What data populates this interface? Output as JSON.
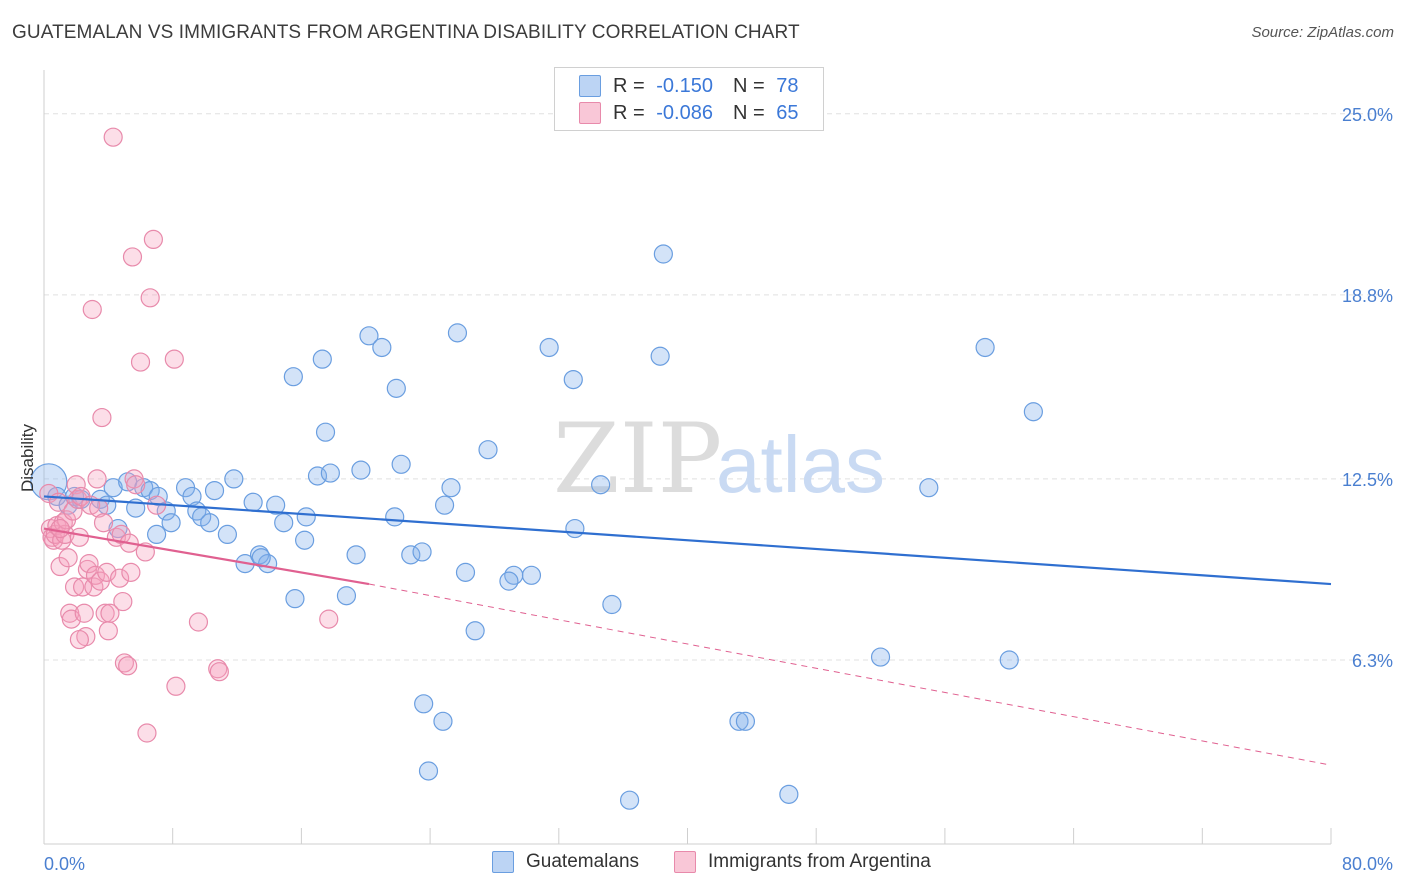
{
  "title": "GUATEMALAN VS IMMIGRANTS FROM ARGENTINA DISABILITY CORRELATION CHART",
  "source": "Source: ZipAtlas.com",
  "watermark": {
    "zip": "ZIP",
    "atlas": "atlas"
  },
  "legend_stats": [
    {
      "r_label": "R =",
      "r_value": "-0.150",
      "n_label": "N =",
      "n_value": "78",
      "color": "#a8c8f0",
      "border": "#6a9ee0"
    },
    {
      "r_label": "R =",
      "r_value": "-0.086",
      "n_label": "N =",
      "n_value": "65",
      "color": "#f7b6cb",
      "border": "#e88aab"
    }
  ],
  "colors": {
    "blue_fill": "rgba(130,175,235,0.35)",
    "blue_stroke": "#6a9ee0",
    "blue_line": "#2f6fd0",
    "pink_fill": "rgba(245,160,190,0.35)",
    "pink_stroke": "#e88aab",
    "pink_line": "#e06090",
    "grid": "#e0e0e0",
    "tick": "#4a7fd0"
  },
  "chart_data": {
    "type": "scatter",
    "title": "GUATEMALAN VS IMMIGRANTS FROM ARGENTINA DISABILITY CORRELATION CHART",
    "xlabel": "",
    "ylabel": "Disability",
    "xlim": [
      0,
      80
    ],
    "ylim": [
      0,
      26.5
    ],
    "x_tick_labels": [
      {
        "value": 0,
        "label": "0.0%"
      },
      {
        "value": 80,
        "label": "80.0%"
      }
    ],
    "y_tick_labels": [
      {
        "value": 6.3,
        "label": "6.3%"
      },
      {
        "value": 12.5,
        "label": "12.5%"
      },
      {
        "value": 18.8,
        "label": "18.8%"
      },
      {
        "value": 25.0,
        "label": "25.0%"
      }
    ],
    "grid": true,
    "series": [
      {
        "name": "Guatemalans",
        "points": [
          [
            0.3,
            12.4
          ],
          [
            0.8,
            11.9
          ],
          [
            1.5,
            11.6
          ],
          [
            1.9,
            11.9
          ],
          [
            2.3,
            11.8
          ],
          [
            3.5,
            11.8
          ],
          [
            3.9,
            11.6
          ],
          [
            4.3,
            12.2
          ],
          [
            4.6,
            10.8
          ],
          [
            5.2,
            12.4
          ],
          [
            5.7,
            11.5
          ],
          [
            6.2,
            12.2
          ],
          [
            6.6,
            12.1
          ],
          [
            7.1,
            11.9
          ],
          [
            7.6,
            11.4
          ],
          [
            7.9,
            11.0
          ],
          [
            8.8,
            12.2
          ],
          [
            9.2,
            11.9
          ],
          [
            9.5,
            11.4
          ],
          [
            9.8,
            11.2
          ],
          [
            10.3,
            11.0
          ],
          [
            10.6,
            12.1
          ],
          [
            11.4,
            10.6
          ],
          [
            11.8,
            12.5
          ],
          [
            12.5,
            9.6
          ],
          [
            13.0,
            11.7
          ],
          [
            13.4,
            9.9
          ],
          [
            13.9,
            9.6
          ],
          [
            14.4,
            11.6
          ],
          [
            14.9,
            11.0
          ],
          [
            15.6,
            8.4
          ],
          [
            15.5,
            16.0
          ],
          [
            17.0,
            12.6
          ],
          [
            16.3,
            11.2
          ],
          [
            16.2,
            10.4
          ],
          [
            17.3,
            16.6
          ],
          [
            17.5,
            14.1
          ],
          [
            17.8,
            12.7
          ],
          [
            18.8,
            8.5
          ],
          [
            19.4,
            9.9
          ],
          [
            19.7,
            12.8
          ],
          [
            20.2,
            17.4
          ],
          [
            21.0,
            17.0
          ],
          [
            21.9,
            15.6
          ],
          [
            21.8,
            11.2
          ],
          [
            22.2,
            13.0
          ],
          [
            22.8,
            9.9
          ],
          [
            23.5,
            10.0
          ],
          [
            23.6,
            4.8
          ],
          [
            23.9,
            2.5
          ],
          [
            24.8,
            4.2
          ],
          [
            24.9,
            11.6
          ],
          [
            25.3,
            12.2
          ],
          [
            25.7,
            17.5
          ],
          [
            26.2,
            9.3
          ],
          [
            26.8,
            7.3
          ],
          [
            27.6,
            13.5
          ],
          [
            29.2,
            9.2
          ],
          [
            30.3,
            9.2
          ],
          [
            31.4,
            17.0
          ],
          [
            32.9,
            15.9
          ],
          [
            33.0,
            10.8
          ],
          [
            34.6,
            12.3
          ],
          [
            35.3,
            8.2
          ],
          [
            36.4,
            1.5
          ],
          [
            38.3,
            16.7
          ],
          [
            38.5,
            20.2
          ],
          [
            43.2,
            4.2
          ],
          [
            43.6,
            4.2
          ],
          [
            46.3,
            1.7
          ],
          [
            52.0,
            6.4
          ],
          [
            55.0,
            12.2
          ],
          [
            58.5,
            17.0
          ],
          [
            60.0,
            6.3
          ],
          [
            61.5,
            14.8
          ],
          [
            13.5,
            9.8
          ],
          [
            7.0,
            10.6
          ],
          [
            28.9,
            9.0
          ]
        ]
      },
      {
        "name": "Immigrants from Argentina",
        "points": [
          [
            0.3,
            12.0
          ],
          [
            0.4,
            10.8
          ],
          [
            0.5,
            10.5
          ],
          [
            0.6,
            10.4
          ],
          [
            0.7,
            10.6
          ],
          [
            0.8,
            10.9
          ],
          [
            0.9,
            11.7
          ],
          [
            1.0,
            9.5
          ],
          [
            1.1,
            10.4
          ],
          [
            1.2,
            11.0
          ],
          [
            1.3,
            10.6
          ],
          [
            1.4,
            11.1
          ],
          [
            1.5,
            9.8
          ],
          [
            1.6,
            7.9
          ],
          [
            1.7,
            7.7
          ],
          [
            1.8,
            11.4
          ],
          [
            1.9,
            8.8
          ],
          [
            2.0,
            12.3
          ],
          [
            2.1,
            11.8
          ],
          [
            2.2,
            10.5
          ],
          [
            2.3,
            11.9
          ],
          [
            2.4,
            8.8
          ],
          [
            2.5,
            7.9
          ],
          [
            2.6,
            7.1
          ],
          [
            2.7,
            9.4
          ],
          [
            2.8,
            9.6
          ],
          [
            2.9,
            11.6
          ],
          [
            3.0,
            18.3
          ],
          [
            3.1,
            8.8
          ],
          [
            3.2,
            9.2
          ],
          [
            3.3,
            12.5
          ],
          [
            3.4,
            11.5
          ],
          [
            3.5,
            9.0
          ],
          [
            3.6,
            14.6
          ],
          [
            3.7,
            11.0
          ],
          [
            3.8,
            7.9
          ],
          [
            3.9,
            9.3
          ],
          [
            4.0,
            7.3
          ],
          [
            4.3,
            24.2
          ],
          [
            4.5,
            10.5
          ],
          [
            4.7,
            9.1
          ],
          [
            4.8,
            10.6
          ],
          [
            4.9,
            8.3
          ],
          [
            5.0,
            6.2
          ],
          [
            5.2,
            6.1
          ],
          [
            5.3,
            10.3
          ],
          [
            5.5,
            20.1
          ],
          [
            5.4,
            9.3
          ],
          [
            5.6,
            12.5
          ],
          [
            5.7,
            12.3
          ],
          [
            6.0,
            16.5
          ],
          [
            6.3,
            10.0
          ],
          [
            6.4,
            3.8
          ],
          [
            6.6,
            18.7
          ],
          [
            6.8,
            20.7
          ],
          [
            7.0,
            11.6
          ],
          [
            8.1,
            16.6
          ],
          [
            8.2,
            5.4
          ],
          [
            9.6,
            7.6
          ],
          [
            10.8,
            6.0
          ],
          [
            10.9,
            5.9
          ],
          [
            17.7,
            7.7
          ],
          [
            2.2,
            7.0
          ],
          [
            4.1,
            7.9
          ],
          [
            1.0,
            10.8
          ]
        ]
      }
    ],
    "trend_lines": [
      {
        "series": "Guatemalans",
        "x_start": 0,
        "y_start": 11.9,
        "x_end": 80,
        "y_end": 8.9
      },
      {
        "series": "Immigrants from Argentina",
        "x_start": 0,
        "y_start": 10.8,
        "x_end": 20.2,
        "y_end": 8.9,
        "dashed_to_x": 80,
        "dashed_to_y": 2.7
      }
    ]
  }
}
